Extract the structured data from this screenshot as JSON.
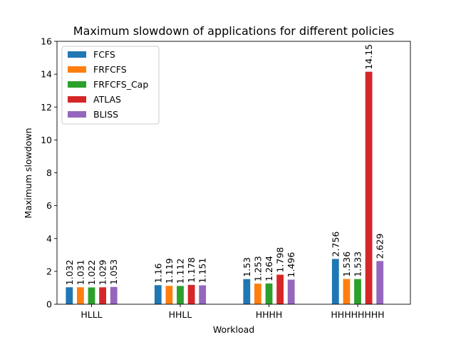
{
  "chart_data": {
    "type": "bar",
    "title": "Maximum slowdown of applications for different policies",
    "xlabel": "Workload",
    "ylabel": "Maximum slowdown",
    "categories": [
      "HLLL",
      "HHLL",
      "HHHH",
      "HHHHHHHH"
    ],
    "ylim": [
      0,
      16
    ],
    "yticks": [
      0,
      2,
      4,
      6,
      8,
      10,
      12,
      14,
      16
    ],
    "grid": false,
    "legend_position": "top-left",
    "series": [
      {
        "name": "FCFS",
        "color": "#1f77b4",
        "values": [
          1.032,
          1.16,
          1.53,
          2.756
        ],
        "labels": [
          "1.032",
          "1.16",
          "1.53",
          "2.756"
        ]
      },
      {
        "name": "FRFCFS",
        "color": "#ff7f0e",
        "values": [
          1.031,
          1.119,
          1.253,
          1.536
        ],
        "labels": [
          "1.031",
          "1.119",
          "1.253",
          "1.536"
        ]
      },
      {
        "name": "FRFCFS_Cap",
        "color": "#2ca02c",
        "values": [
          1.022,
          1.112,
          1.264,
          1.533
        ],
        "labels": [
          "1.022",
          "1.112",
          "1.264",
          "1.533"
        ]
      },
      {
        "name": "ATLAS",
        "color": "#d62728",
        "values": [
          1.029,
          1.178,
          1.798,
          14.15
        ],
        "labels": [
          "1.029",
          "1.178",
          "1.798",
          "14.15"
        ]
      },
      {
        "name": "BLISS",
        "color": "#9467bd",
        "values": [
          1.053,
          1.151,
          1.496,
          2.629
        ],
        "labels": [
          "1.053",
          "1.151",
          "1.496",
          "2.629"
        ]
      }
    ]
  }
}
